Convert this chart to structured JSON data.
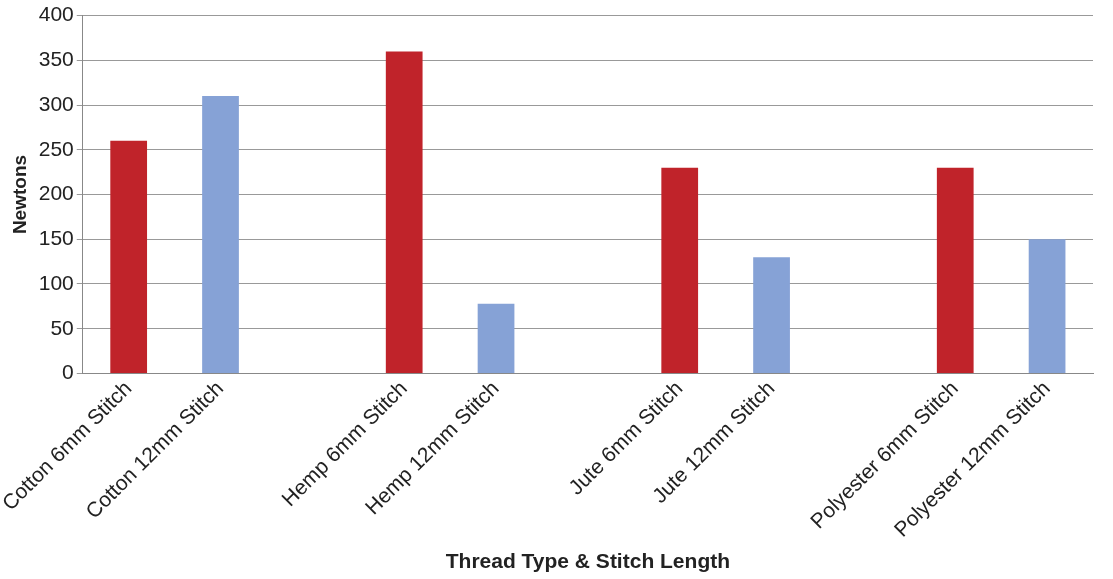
{
  "chart_data": {
    "type": "bar",
    "xlabel": "Thread Type & Stitch Length",
    "ylabel": "Newtons",
    "categories": [
      "Cotton 6mm Stitch",
      "Cotton 12mm Stitch",
      null,
      "Hemp 6mm Stitch",
      "Hemp 12mm Stitch",
      null,
      "Jute 6mm Stitch",
      "Jute 12mm Stitch",
      null,
      "Polyester 6mm Stitch",
      "Polyester 12mm Stitch"
    ],
    "values": [
      260,
      310,
      null,
      360,
      78,
      null,
      230,
      130,
      null,
      230,
      150
    ],
    "colors": [
      "#c0232a",
      "#86a2d6",
      "#c0232a",
      "#c0232a",
      "#86a2d6",
      "#86a2d6",
      "#c0232a",
      "#86a2d6",
      "#c0232a",
      "#c0232a",
      "#86a2d6"
    ],
    "ylim": [
      0,
      400
    ],
    "yticks": [
      0,
      50,
      100,
      150,
      200,
      250,
      300,
      350,
      400
    ],
    "grid": "y",
    "legend": false
  }
}
